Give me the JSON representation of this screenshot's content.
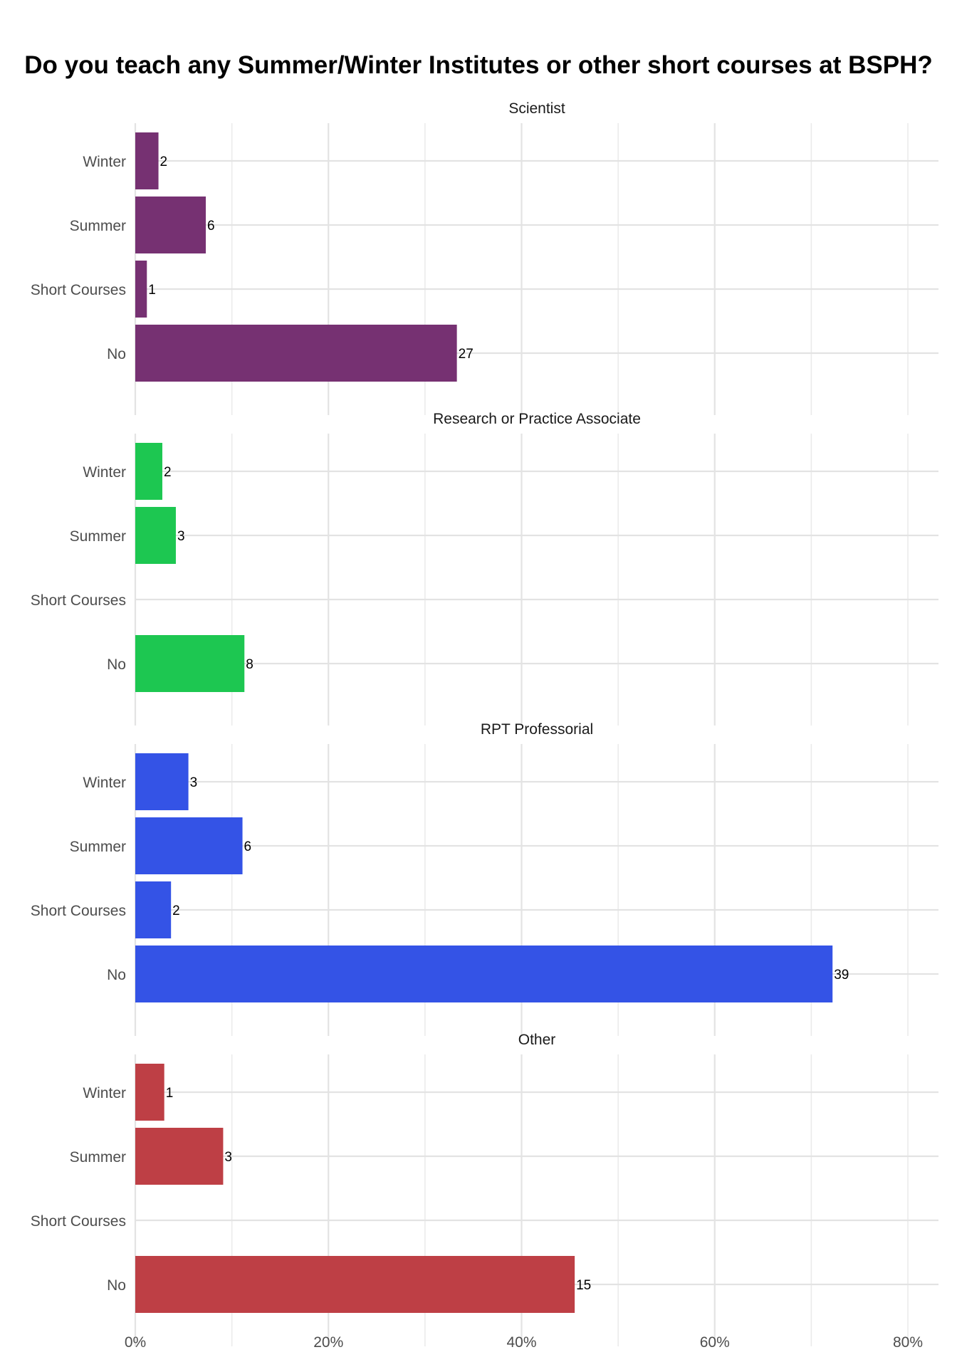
{
  "title": "Do you teach any Summer/Winter Institutes or other short courses at BSPH?",
  "chart_data": {
    "type": "bar",
    "orientation": "horizontal",
    "title": "Do you teach any Summer/Winter Institutes or other short courses at BSPH?",
    "categories": [
      "Winter",
      "Summer",
      "Short Courses",
      "No"
    ],
    "x_ticks": [
      "0%",
      "20%",
      "40%",
      "60%",
      "80%"
    ],
    "xlim": [
      0,
      0.8
    ],
    "grid": true,
    "legend": "none",
    "panels": [
      {
        "name": "Scientist",
        "color": "#763172",
        "counts": [
          2,
          6,
          1,
          27
        ],
        "percent": [
          0.024,
          0.073,
          0.012,
          0.333
        ]
      },
      {
        "name": "Research or Practice Associate",
        "color": "#1DC751",
        "counts": [
          2,
          3,
          null,
          8
        ],
        "percent": [
          0.028,
          0.042,
          0,
          0.113
        ]
      },
      {
        "name": "RPT Professorial",
        "color": "#3453E6",
        "counts": [
          3,
          6,
          2,
          39
        ],
        "percent": [
          0.055,
          0.111,
          0.037,
          0.722
        ]
      },
      {
        "name": "Other",
        "color": "#BE3F45",
        "counts": [
          1,
          3,
          null,
          15
        ],
        "percent": [
          0.03,
          0.091,
          0,
          0.455
        ]
      }
    ]
  }
}
